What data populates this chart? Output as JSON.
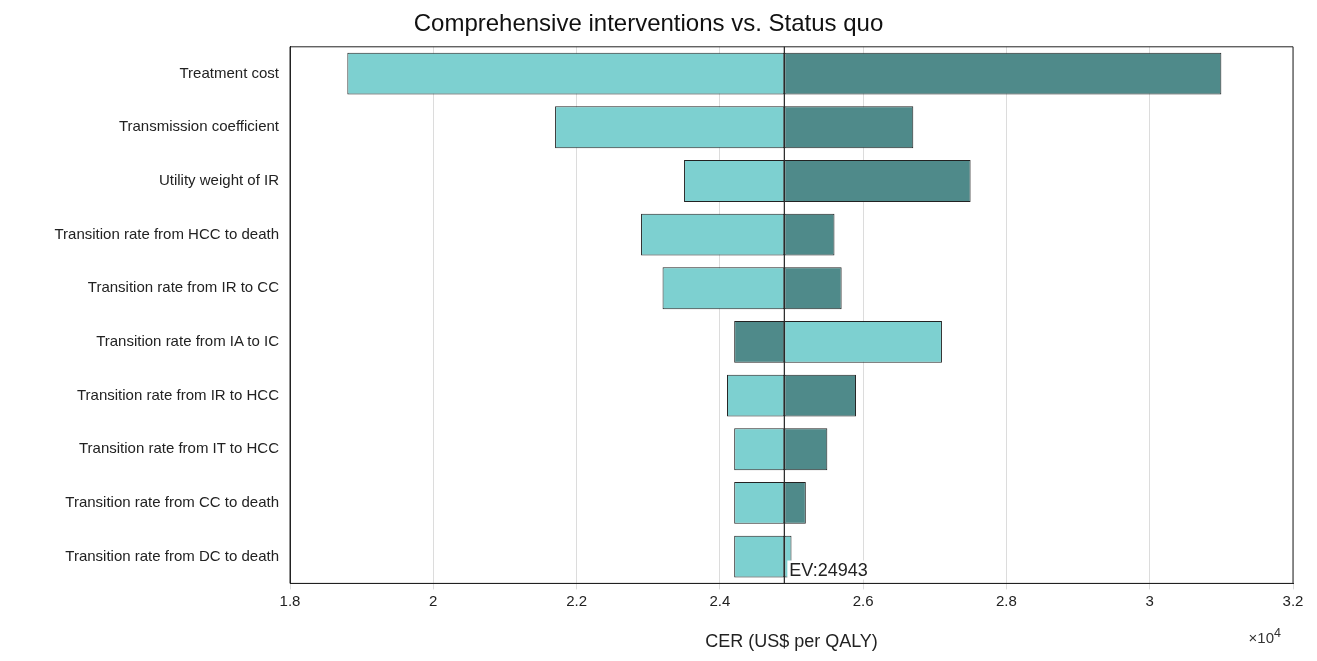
{
  "chart_data": {
    "type": "bar",
    "orientation": "horizontal",
    "title": "Comprehensive interventions vs. Status quo",
    "xlabel": "CER (US$ per QALY)",
    "categories": [
      "Treatment cost",
      "Transmission coefficient",
      "Utility weight of IR",
      "Transition rate from HCC to death",
      "Transition rate from IR to CC",
      "Transition rate from IA to IC",
      "Transition rate from IR to HCC",
      "Transition rate from IT to HCC",
      "Transition rate from CC to death",
      "Transition rate from DC to death"
    ],
    "series": [
      {
        "base": [
          1.88,
          2.17,
          2.35,
          2.29,
          2.32,
          2.42,
          2.41,
          2.42,
          2.42,
          2.42
        ],
        "values": [
          0.61,
          0.32,
          0.14,
          0.2,
          0.17,
          0.07,
          0.08,
          0.07,
          0.07,
          0.07
        ],
        "colors": [
          "#7dd0d0",
          "#7dd0d0",
          "#7dd0d0",
          "#7dd0d0",
          "#7dd0d0",
          "#4f8a8a",
          "#7dd0d0",
          "#7dd0d0",
          "#7dd0d0",
          "#7dd0d0"
        ]
      },
      {
        "base": [
          2.49,
          2.49,
          2.49,
          2.49,
          2.49,
          2.49,
          2.49,
          2.49,
          2.49,
          2.49
        ],
        "values": [
          0.61,
          0.18,
          0.26,
          0.07,
          0.08,
          0.22,
          0.1,
          0.06,
          0.03,
          0.01
        ],
        "colors": [
          "#4f8a8a",
          "#4f8a8a",
          "#4f8a8a",
          "#4f8a8a",
          "#4f8a8a",
          "#7dd0d0",
          "#4f8a8a",
          "#4f8a8a",
          "#4f8a8a",
          "#7dd0d0"
        ]
      }
    ],
    "xlim": [
      1.8,
      3.2
    ],
    "xticks": [
      1.8,
      2,
      2.2,
      2.4,
      2.6,
      2.8,
      3,
      3.2
    ],
    "grid": "x",
    "ref_lines": [
      {
        "axis": "x",
        "value": 2.49,
        "color": "#222222"
      }
    ],
    "annotations": [
      {
        "text": "EV:24943",
        "x": 2.49
      },
      "×10$^{4}$"
    ]
  }
}
